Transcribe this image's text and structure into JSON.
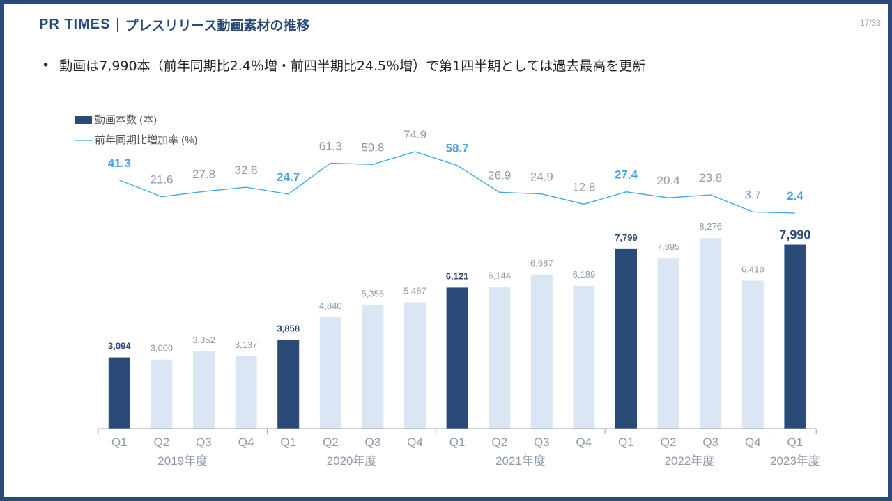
{
  "header": {
    "brand": "PR TIMES",
    "title": "プレスリリース動画素材の推移",
    "page_number": "17/33"
  },
  "bullet": {
    "text": "動画は7,990本（前年同期比2.4％増・前四半期比24.5％増）で第1四半期としては過去最高を更新"
  },
  "colors": {
    "frame": "#2a4a78",
    "bar_q1": "#2a4a78",
    "bar_other": "#dae6f3",
    "line": "#3aa6e8",
    "label_q1_line": "#4aa3e0",
    "label_other": "#8e9aaa"
  },
  "chart_data": {
    "type": "bar+line",
    "legend": [
      {
        "name": "動画本数 (本)",
        "kind": "bar"
      },
      {
        "name": "前年同期比増加率 (%)",
        "kind": "line"
      }
    ],
    "categories": [
      "Q1",
      "Q2",
      "Q3",
      "Q4",
      "Q1",
      "Q2",
      "Q3",
      "Q4",
      "Q1",
      "Q2",
      "Q3",
      "Q4",
      "Q1",
      "Q2",
      "Q3",
      "Q4",
      "Q1"
    ],
    "year_groups": [
      {
        "label": "2019年度",
        "start": 0,
        "count": 4
      },
      {
        "label": "2020年度",
        "start": 4,
        "count": 4
      },
      {
        "label": "2021年度",
        "start": 8,
        "count": 4
      },
      {
        "label": "2022年度",
        "start": 12,
        "count": 4
      },
      {
        "label": "2023年度",
        "start": 16,
        "count": 1
      }
    ],
    "bars": {
      "name": "動画本数 (本)",
      "values": [
        3094,
        3000,
        3352,
        3137,
        3858,
        4840,
        5355,
        5487,
        6121,
        6144,
        6687,
        6189,
        7799,
        7395,
        8276,
        6418,
        7990
      ],
      "labels": [
        "3,094",
        "3,000",
        "3,352",
        "3,137",
        "3,858",
        "4,840",
        "5,355",
        "5,487",
        "6,121",
        "6,144",
        "6,687",
        "6,189",
        "7,799",
        "7,395",
        "8,276",
        "6,418",
        "7,990"
      ]
    },
    "line": {
      "name": "前年同期比増加率 (%)",
      "values": [
        41.3,
        21.6,
        27.8,
        32.8,
        24.7,
        61.3,
        59.8,
        74.9,
        58.7,
        26.9,
        24.9,
        12.8,
        27.4,
        20.4,
        23.8,
        3.7,
        2.4
      ],
      "labels": [
        "41.3",
        "21.6",
        "27.8",
        "32.8",
        "24.7",
        "61.3",
        "59.8",
        "74.9",
        "58.7",
        "26.9",
        "24.9",
        "12.8",
        "27.4",
        "20.4",
        "23.8",
        "3.7",
        "2.4"
      ]
    },
    "grid": false
  }
}
